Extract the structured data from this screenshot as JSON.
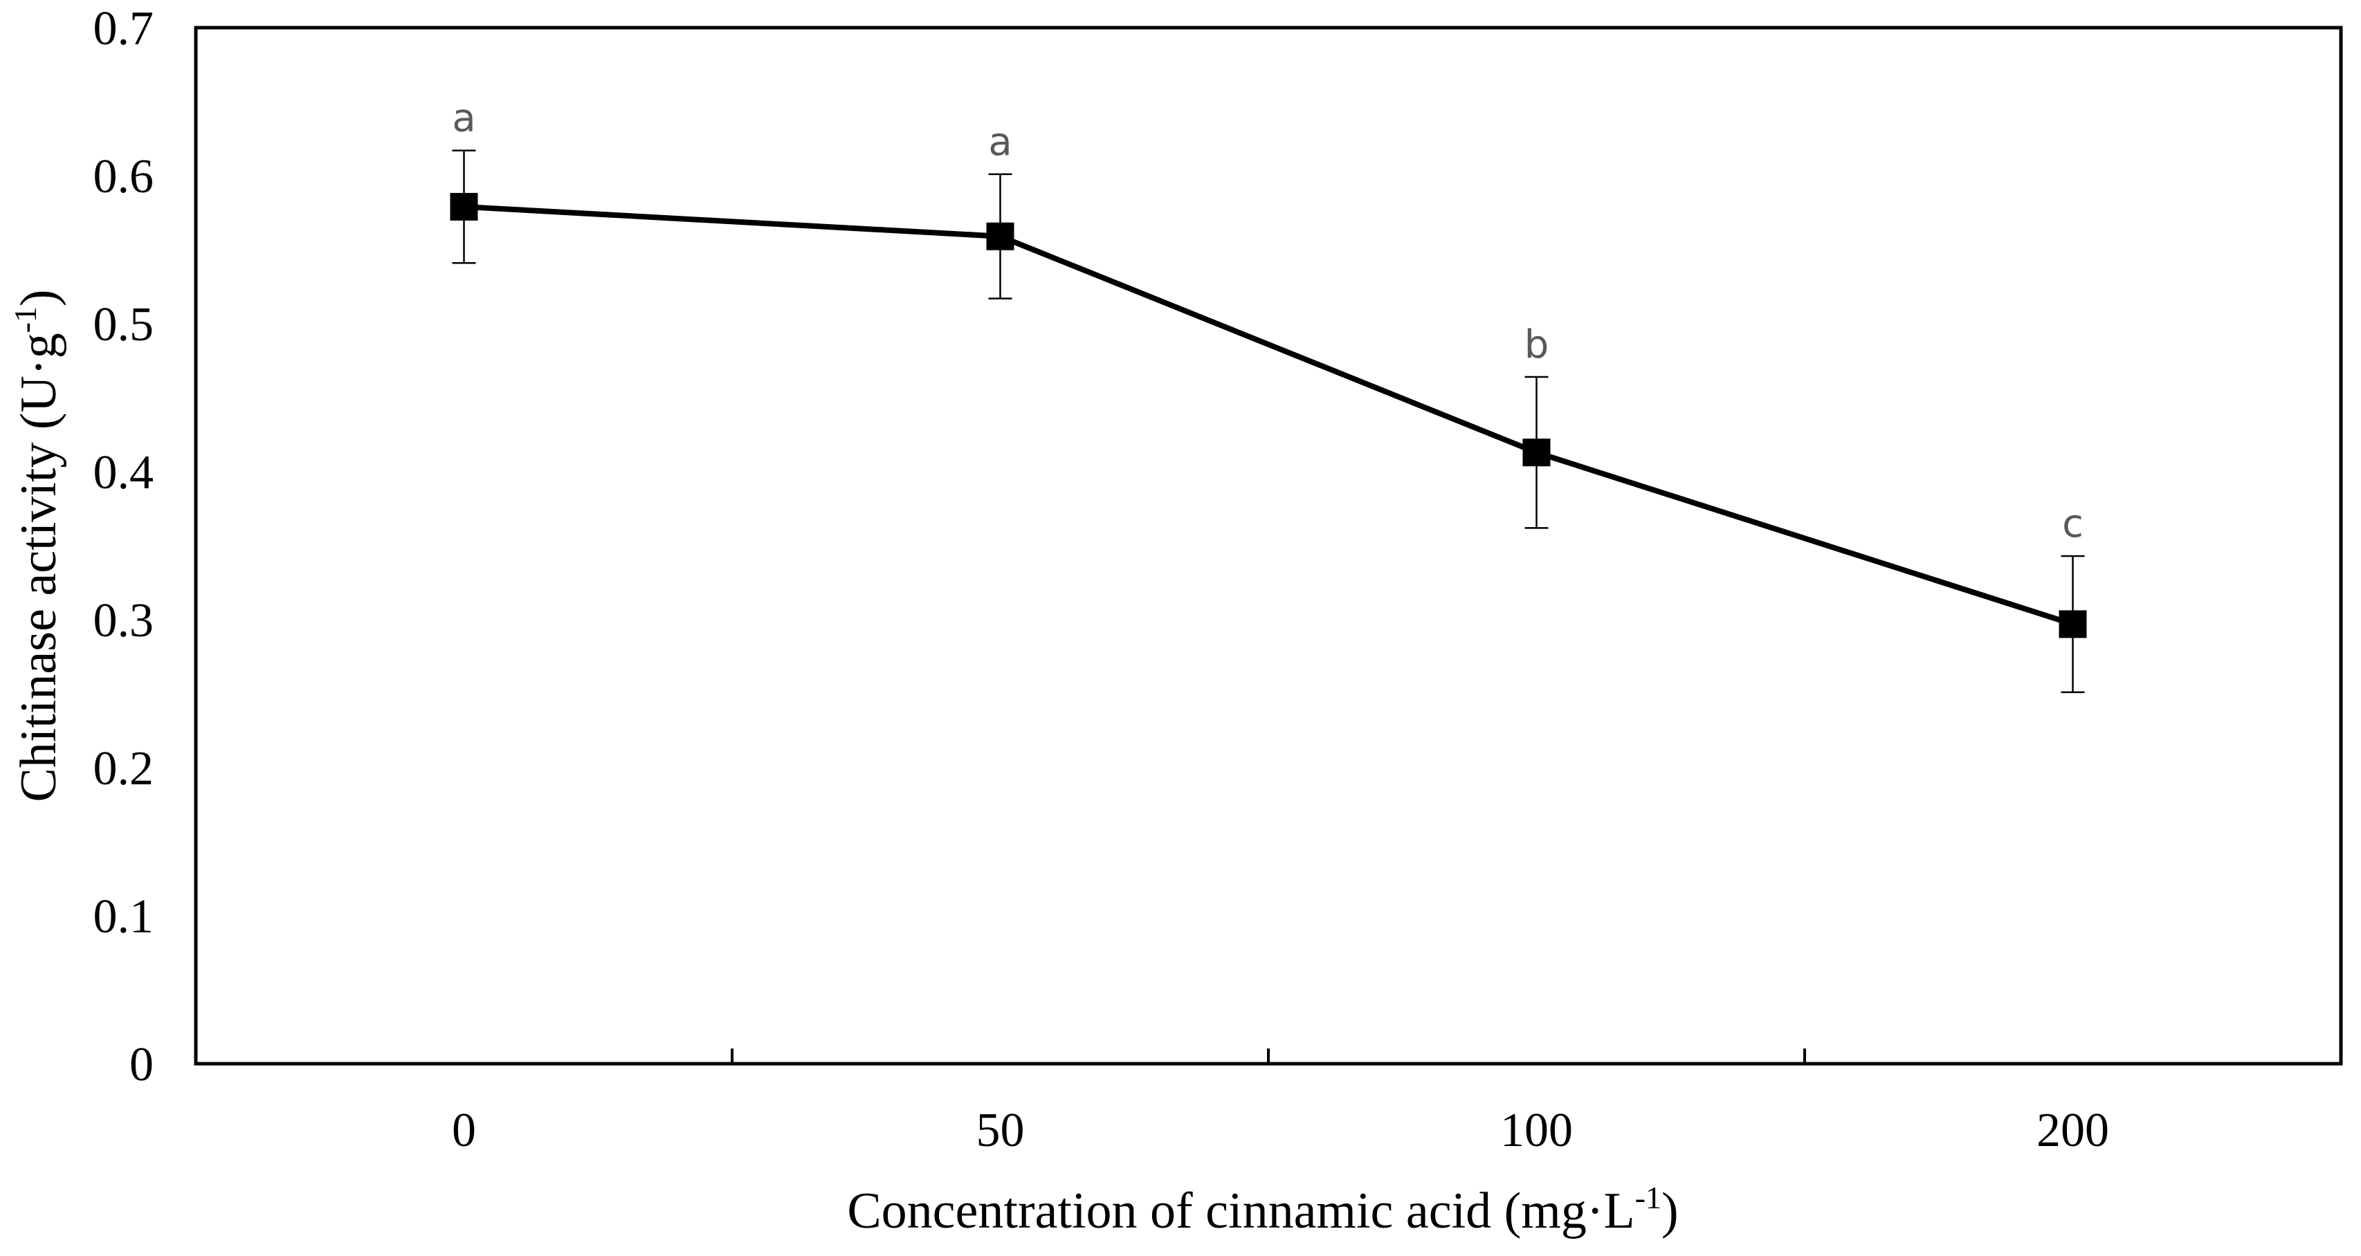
{
  "chart_data": {
    "type": "line",
    "title": "",
    "categories": [
      "0",
      "50",
      "100",
      "200"
    ],
    "series": [
      {
        "name": "Chitinase activity",
        "values": [
          0.579,
          0.559,
          0.413,
          0.297
        ],
        "error": [
          0.038,
          0.042,
          0.051,
          0.046
        ],
        "significance": [
          "a",
          "a",
          "b",
          "c"
        ],
        "marker": "square",
        "color": "#000000"
      }
    ],
    "xlabel": {
      "main": "Concentration of cinnamic acid (mg·L",
      "sup": "-1",
      "close": ")"
    },
    "ylabel": {
      "main": "Chitinase activity (U·g",
      "sup": "-1",
      "close": ")"
    },
    "ylim": [
      0,
      0.7
    ],
    "yticks": [
      "0",
      "0.1",
      "0.2",
      "0.3",
      "0.4",
      "0.5",
      "0.6",
      "0.7"
    ],
    "grid": false,
    "legend": "none"
  }
}
